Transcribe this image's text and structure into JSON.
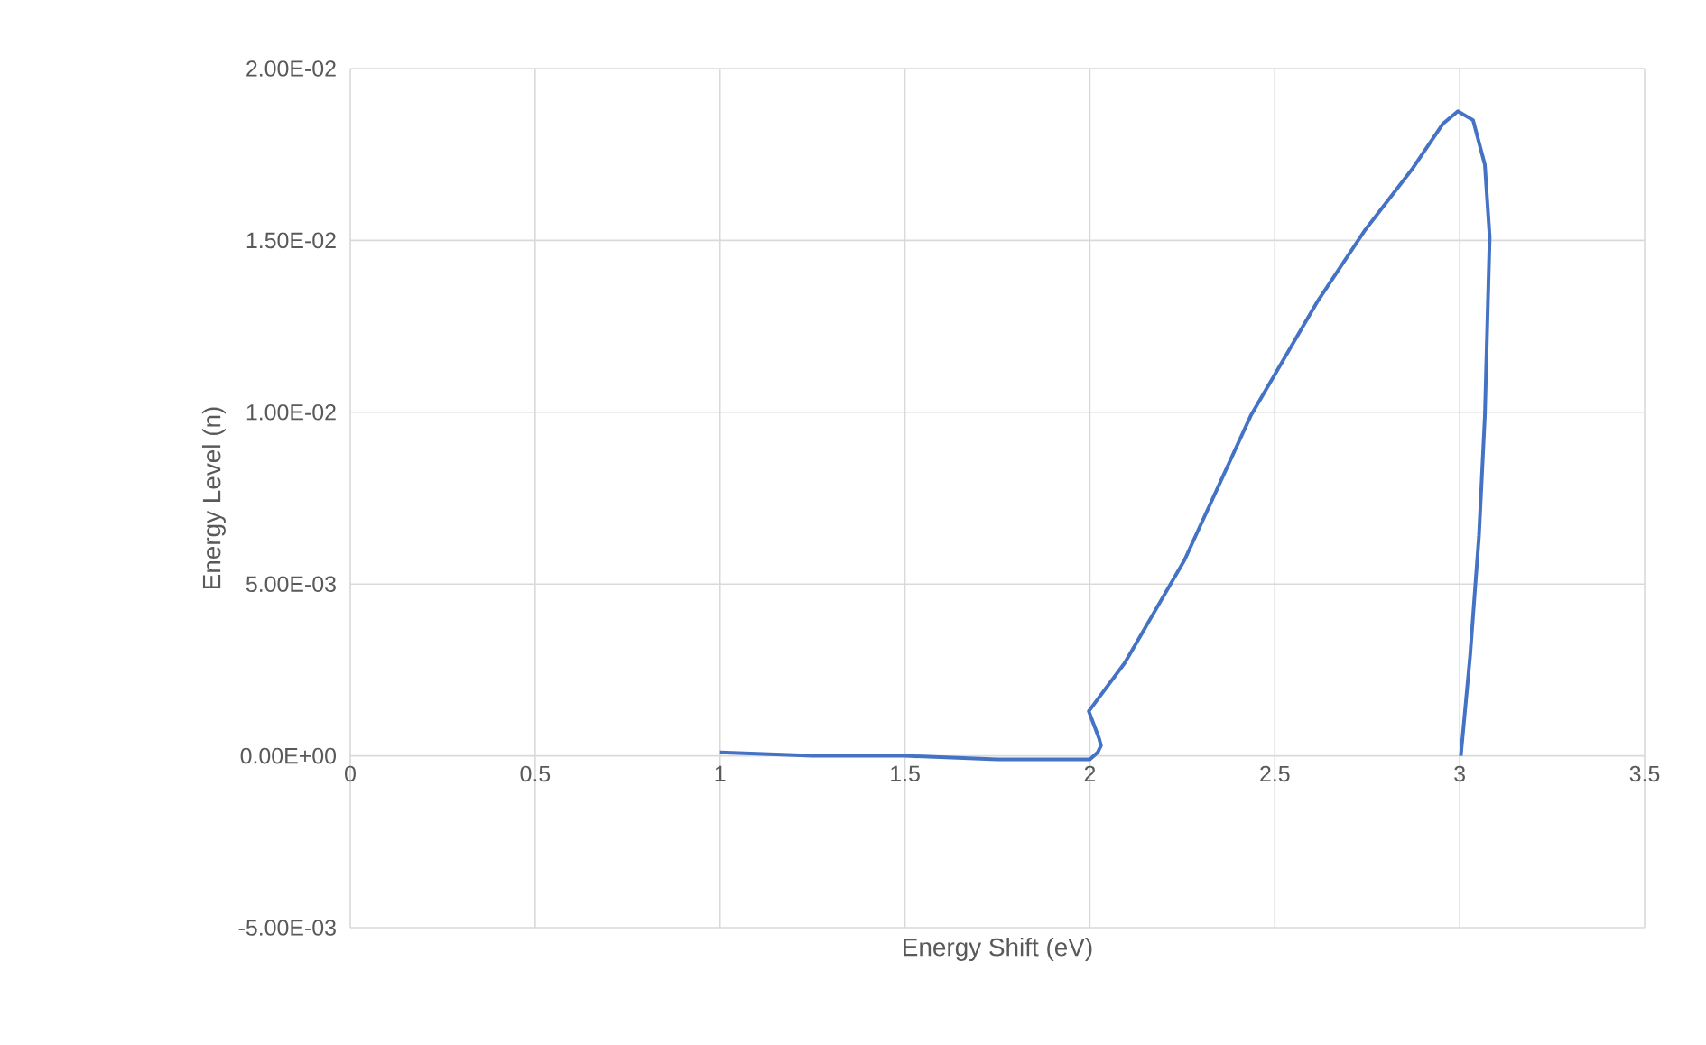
{
  "chart_data": {
    "type": "line",
    "xlabel": "Energy Shift (eV)",
    "ylabel": "Energy Level (n)",
    "x": [
      1.0,
      1.25,
      1.5,
      1.75,
      1.93,
      2.0,
      2.021,
      2.03,
      2.025,
      1.997,
      2.094,
      2.256,
      2.435,
      2.5,
      2.614,
      2.744,
      2.873,
      2.955,
      2.995,
      3.036,
      3.068,
      3.081,
      3.068,
      3.052,
      3.028,
      3.003
    ],
    "values": [
      0.0001,
      0.0,
      0.0,
      -0.0001,
      -0.0001,
      -0.0001,
      0.0001,
      0.0003,
      0.0005,
      0.0013,
      0.0027,
      0.0057,
      0.0099,
      0.0111,
      0.0132,
      0.0153,
      0.0171,
      0.0184,
      0.01876,
      0.0185,
      0.0172,
      0.0151,
      0.0099,
      0.0064,
      0.0029,
      0.0
    ],
    "color": "#4472c4",
    "xlim": [
      0,
      3.5
    ],
    "ylim": [
      -0.005,
      0.02
    ],
    "xticks": [
      0,
      0.5,
      1,
      1.5,
      2,
      2.5,
      3,
      3.5
    ],
    "yticks": [
      {
        "value": -0.005,
        "label": "-5.00E-03"
      },
      {
        "value": 0,
        "label": "0.00E+00"
      },
      {
        "value": 0.005,
        "label": "5.00E-03"
      },
      {
        "value": 0.01,
        "label": "1.00E-02"
      },
      {
        "value": 0.015,
        "label": "1.50E-02"
      },
      {
        "value": 0.02,
        "label": "2.00E-02"
      }
    ],
    "grid": true,
    "marker": "none",
    "line_style": "solid"
  }
}
